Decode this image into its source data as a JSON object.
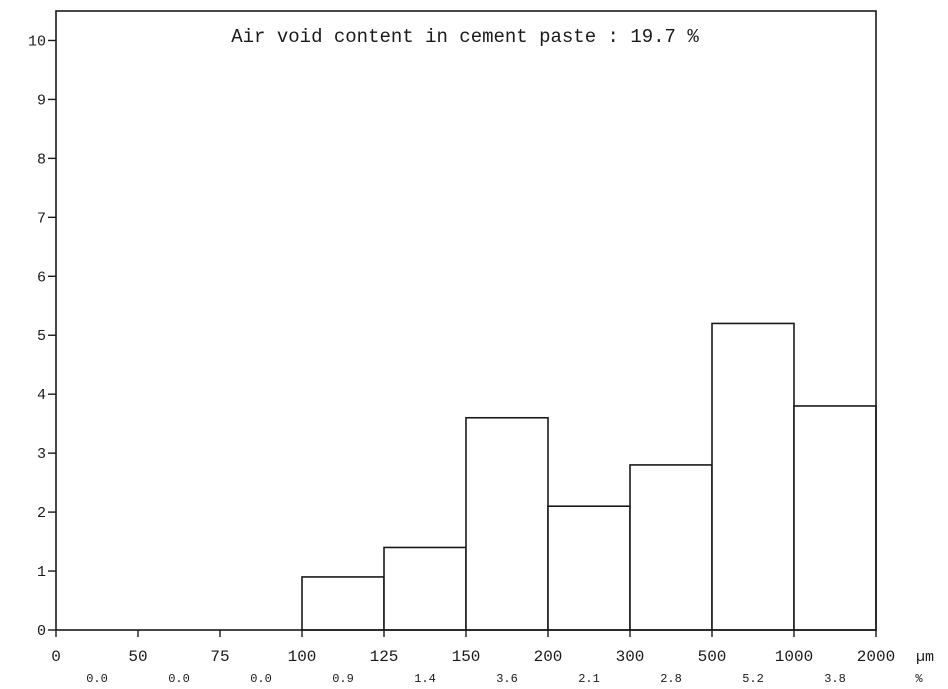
{
  "chart_data": {
    "type": "bar",
    "title": "Air void content in cement paste : 19.7 %",
    "x_unit": "µm",
    "value_unit": "%",
    "bin_edges": [
      "0",
      "50",
      "75",
      "100",
      "125",
      "150",
      "200",
      "300",
      "500",
      "1000",
      "2000"
    ],
    "values": [
      0.0,
      0.0,
      0.0,
      0.9,
      1.4,
      3.6,
      2.1,
      2.8,
      5.2,
      3.8
    ],
    "value_labels": [
      "0.0",
      "0.0",
      "0.0",
      "0.9",
      "1.4",
      "3.6",
      "2.1",
      "2.8",
      "5.2",
      "3.8"
    ],
    "yticks": [
      "0",
      "1",
      "2",
      "3",
      "4",
      "5",
      "6",
      "7",
      "8",
      "9",
      "10"
    ],
    "ylim": [
      0,
      10.5
    ],
    "grid": false
  }
}
